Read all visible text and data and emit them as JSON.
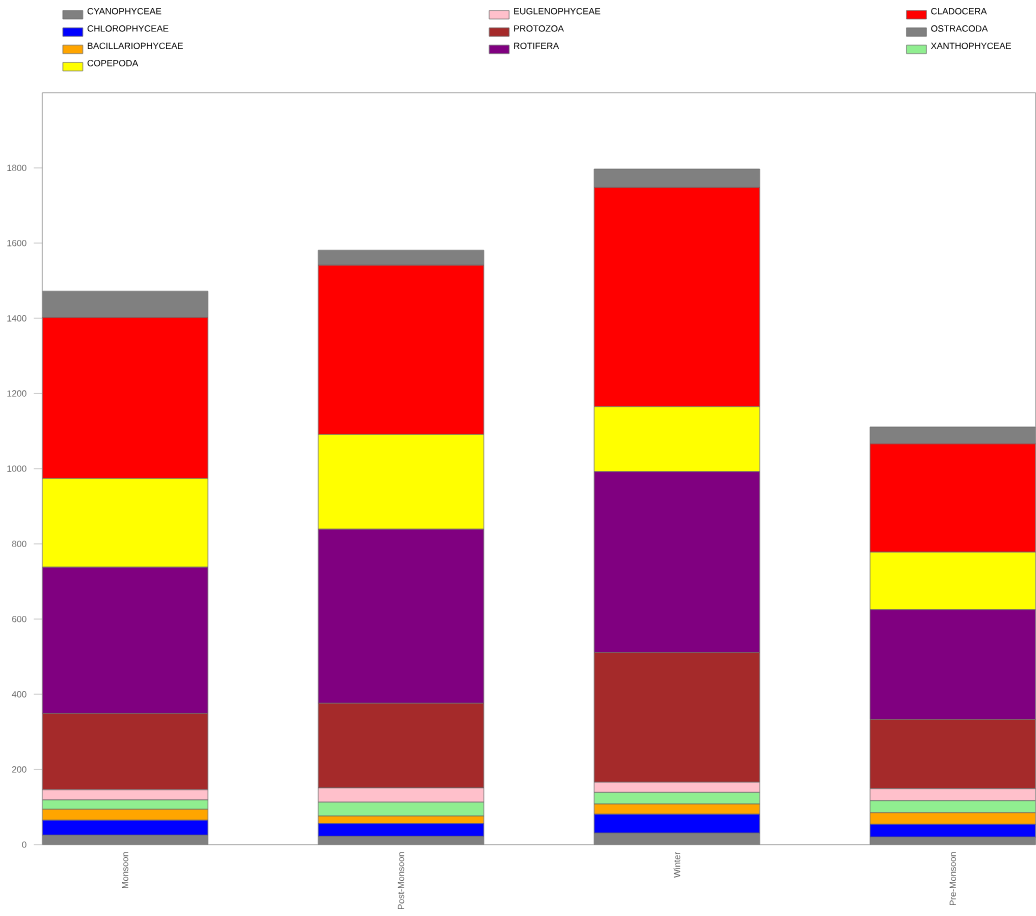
{
  "chart_data": {
    "type": "bar",
    "stacked": true,
    "categories": [
      "Monsoon",
      "Post-Monsoon",
      "Winter",
      "Pre-Monsoon"
    ],
    "series": [
      {
        "name": "CYANOPHYCEAE",
        "color": "#808080",
        "values": [
          25,
          22,
          31,
          20
        ]
      },
      {
        "name": "CHLOROPHYCEAE",
        "color": "#0000ff",
        "values": [
          40,
          34,
          50,
          34
        ]
      },
      {
        "name": "BACILLARIOPHYCEAE",
        "color": "#ffa500",
        "values": [
          29,
          20,
          27,
          31
        ]
      },
      {
        "name": "XANTHOPHYCEAE",
        "color": "#90ee90",
        "values": [
          25,
          37,
          31,
          32
        ]
      },
      {
        "name": "EUGLENOPHYCEAE",
        "color": "#ffc0cb",
        "values": [
          27,
          38,
          27,
          32
        ]
      },
      {
        "name": "PROTOZOA",
        "color": "#a52a2a",
        "values": [
          203,
          225,
          345,
          184
        ]
      },
      {
        "name": "ROTIFERA",
        "color": "#800080",
        "values": [
          389,
          463,
          481,
          292
        ]
      },
      {
        "name": "COPEPODA",
        "color": "#ffff00",
        "values": [
          236,
          252,
          173,
          153
        ]
      },
      {
        "name": "CLADOCERA",
        "color": "#ff0000",
        "values": [
          428,
          450,
          583,
          288
        ]
      },
      {
        "name": "OSTRACODA",
        "color": "#808080",
        "values": [
          70,
          40,
          49,
          45
        ]
      }
    ],
    "ylim": [
      0,
      2000
    ],
    "yticks": [
      0,
      200,
      400,
      600,
      800,
      1000,
      1200,
      1400,
      1600,
      1800
    ],
    "grid": false,
    "legend": "top"
  }
}
